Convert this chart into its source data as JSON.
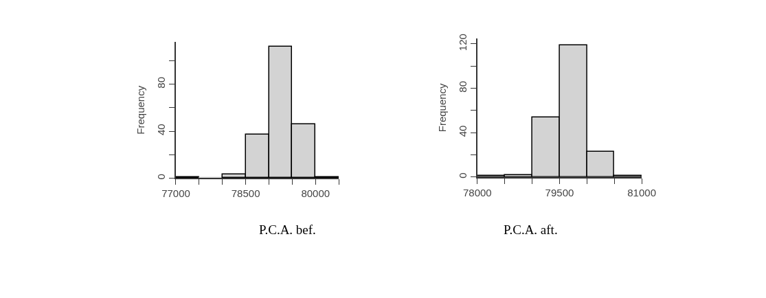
{
  "chart_data": [
    {
      "type": "histogram",
      "xlabel": "P.C.A. bef.",
      "ylabel": "Frequency",
      "color": "#d3d3d3",
      "bins": [
        77000,
        77500,
        78000,
        78500,
        79000,
        79500,
        80000,
        80500
      ],
      "values": [
        1,
        0,
        3,
        37,
        112,
        46,
        1
      ],
      "xlim": [
        77000,
        80500
      ],
      "xticks": [
        77000,
        {
          "value": 77500,
          "label": null
        },
        {
          "value": 78000,
          "label": null
        },
        78500,
        {
          "value": 79000,
          "label": null
        },
        {
          "value": 79500,
          "label": null
        },
        80000,
        {
          "value": 80500,
          "label": null
        }
      ],
      "ylim": [
        0,
        116
      ],
      "yticks": [
        0,
        {
          "value": 20,
          "label": null
        },
        40,
        {
          "value": 60,
          "label": null
        },
        80,
        {
          "value": 100,
          "label": null
        }
      ]
    },
    {
      "type": "histogram",
      "xlabel": "P.C.A. aft.",
      "ylabel": "Frequency",
      "color": "#d3d3d3",
      "bins": [
        78000,
        78500,
        79000,
        79500,
        80000,
        80500,
        81000
      ],
      "values": [
        1,
        2,
        54,
        119,
        23,
        1
      ],
      "xlim": [
        78000,
        81000
      ],
      "xticks": [
        78000,
        {
          "value": 78500,
          "label": null
        },
        79500,
        {
          "value": 79000,
          "label": null
        },
        {
          "value": 80000,
          "label": null
        },
        {
          "value": 80500,
          "label": null
        },
        81000
      ],
      "ylim": [
        0,
        125
      ],
      "yticks": [
        0,
        {
          "value": 20,
          "label": null
        },
        40,
        {
          "value": 60,
          "label": null
        },
        80,
        {
          "value": 100,
          "label": null
        },
        120
      ]
    }
  ]
}
